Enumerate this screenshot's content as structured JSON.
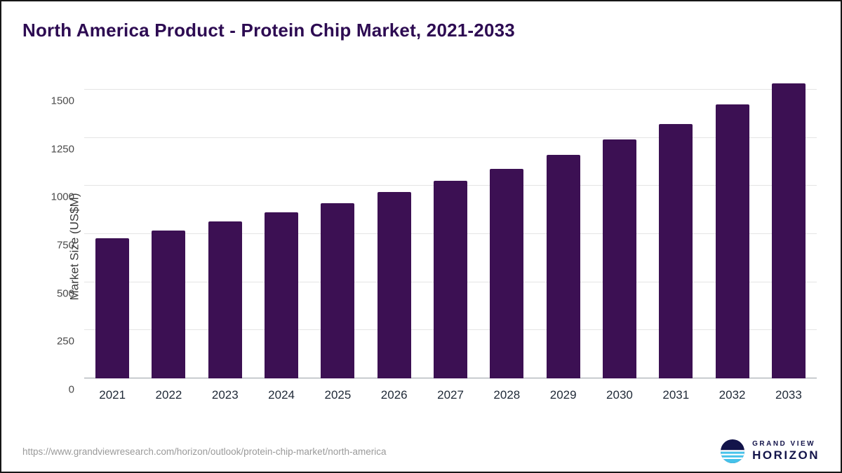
{
  "title": "North America Product - Protein Chip Market, 2021-2033",
  "source_url": "https://www.grandviewresearch.com/horizon/outlook/protein-chip-market/north-america",
  "logo": {
    "line1": "GRAND VIEW",
    "line2": "HORIZON"
  },
  "colors": {
    "bar": "#3c1053",
    "title": "#2d0b52",
    "brand_navy": "#13144a",
    "brand_blue": "#45c2ea"
  },
  "chart_data": {
    "type": "bar",
    "title": "North America Product - Protein Chip Market, 2021-2033",
    "categories": [
      "2021",
      "2022",
      "2023",
      "2024",
      "2025",
      "2026",
      "2027",
      "2028",
      "2029",
      "2030",
      "2031",
      "2032",
      "2033"
    ],
    "values": [
      730,
      770,
      815,
      862,
      912,
      968,
      1026,
      1089,
      1160,
      1240,
      1323,
      1423,
      1532
    ],
    "xlabel": "",
    "ylabel": "Market Size (US$M)",
    "ylim": [
      0,
      1500
    ],
    "yticks": [
      0,
      250,
      500,
      750,
      1000,
      1250,
      1500
    ],
    "grid": true,
    "legend": "none"
  }
}
